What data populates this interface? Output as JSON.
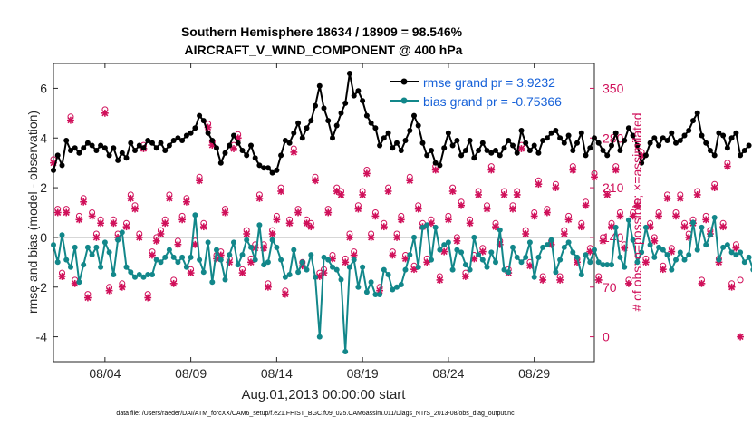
{
  "chart_data": {
    "type": "line",
    "title": "Southern Hemisphere 18634 / 18909 = 98.546%",
    "subtitle": "AIRCRAFT_V_WIND_COMPONENT @ 400 hPa",
    "xlabel": "Aug.01,2013 00:00:00 start",
    "ylabel": "rmse and bias (model - observation)",
    "ylabel_right": "# of obs: o=possible; ×=assimilated",
    "footnote": "data file: /Users/raeder/DAI/ATM_forcXX/CAM6_setup/f.e21.FHIST_BGC.f09_025.CAM6assim.011/Diags_NTrS_2013-08/obs_diag_output.nc",
    "x_range": [
      1,
      32.5
    ],
    "ylim": [
      -5,
      7
    ],
    "ylim_right": [
      -35,
      385
    ],
    "x_ticks": [
      {
        "value": 4,
        "label": "08/04"
      },
      {
        "value": 9,
        "label": "08/09"
      },
      {
        "value": 14,
        "label": "08/14"
      },
      {
        "value": 19,
        "label": "08/19"
      },
      {
        "value": 24,
        "label": "08/24"
      },
      {
        "value": 29,
        "label": "08/29"
      }
    ],
    "y_ticks": [
      -4,
      -2,
      0,
      2,
      4,
      6
    ],
    "y_ticks_right": [
      0,
      70,
      140,
      210,
      280,
      350
    ],
    "legend": {
      "location": "top-right"
    },
    "series": [
      {
        "name": "rmse grand pr = 3.9232",
        "axis": "left",
        "color": "#000000",
        "x_start": 1.0,
        "x_step": 0.25,
        "values": [
          2.7,
          3.3,
          2.9,
          3.9,
          3.5,
          3.6,
          3.4,
          3.6,
          3.8,
          3.7,
          3.5,
          3.7,
          3.6,
          3.3,
          3.6,
          3.1,
          3.4,
          3.2,
          3.8,
          3.5,
          3.7,
          3.6,
          3.9,
          3.8,
          3.6,
          3.8,
          3.5,
          3.7,
          3.9,
          4.0,
          3.9,
          4.1,
          4.2,
          4.4,
          4.9,
          4.7,
          4.2,
          3.9,
          3.6,
          3.0,
          3.4,
          3.7,
          4.1,
          3.8,
          3.5,
          3.3,
          3.7,
          3.2,
          2.9,
          2.8,
          2.8,
          2.6,
          2.7,
          3.3,
          3.9,
          3.8,
          4.2,
          4.6,
          4.0,
          4.4,
          4.7,
          5.3,
          6.1,
          5.2,
          4.7,
          4.0,
          4.5,
          5.0,
          5.4,
          6.6,
          5.7,
          5.9,
          5.5,
          4.9,
          4.6,
          4.4,
          3.7,
          4.0,
          4.2,
          3.6,
          3.8,
          3.5,
          3.9,
          4.3,
          4.9,
          4.5,
          3.8,
          3.3,
          3.5,
          3.0,
          2.9,
          3.6,
          4.2,
          3.7,
          3.9,
          3.3,
          3.5,
          3.9,
          3.2,
          3.5,
          3.8,
          3.5,
          3.4,
          3.5,
          3.3,
          3.6,
          3.9,
          3.7,
          3.4,
          4.3,
          3.8,
          3.5,
          3.7,
          3.4,
          3.9,
          4.0,
          4.2,
          4.3,
          4.0,
          3.8,
          4.1,
          3.5,
          3.8,
          4.2,
          3.3,
          3.6,
          4.0,
          3.8,
          3.5,
          3.3,
          3.7,
          4.2,
          3.5,
          3.9,
          4.4,
          4.1,
          3.7,
          3.0,
          3.3,
          3.8,
          4.0,
          3.7,
          4.0,
          3.9,
          4.2,
          3.8,
          3.9,
          4.1,
          4.3,
          4.7,
          5.0,
          4.1,
          3.8,
          3.5,
          3.3,
          4.2,
          4.1,
          3.6,
          4.0,
          4.2,
          3.3,
          3.5,
          3.7
        ]
      },
      {
        "name": "bias grand pr = -0.75366",
        "axis": "left",
        "color": "#12878a",
        "x_start": 1.0,
        "x_step": 0.25,
        "values": [
          -0.3,
          -1.0,
          0.1,
          -0.9,
          -1.2,
          -0.4,
          -1.8,
          -1.1,
          -0.4,
          -0.7,
          -0.4,
          -1.2,
          -0.2,
          -0.6,
          -1.5,
          -0.1,
          0.2,
          -1.2,
          -1.4,
          -1.6,
          -1.5,
          -1.6,
          -1.5,
          -1.5,
          -0.9,
          -1.0,
          -0.8,
          -0.5,
          -0.8,
          -1.0,
          -0.8,
          -1.2,
          -0.8,
          0.9,
          -0.9,
          -1.4,
          -0.2,
          -1.8,
          -0.5,
          -0.9,
          -1.7,
          -0.7,
          -0.2,
          -1.1,
          -0.7,
          -0.1,
          -0.4,
          -0.9,
          0.5,
          -1.1,
          -1.0,
          -0.1,
          -0.4,
          -0.9,
          -1.6,
          -1.5,
          -0.5,
          -1.4,
          -1.0,
          -1.3,
          -0.7,
          -1.6,
          -4.0,
          -0.8,
          -0.9,
          -1.2,
          -1.3,
          -1.7,
          -4.6,
          -1.2,
          -0.9,
          -2.0,
          -1.2,
          -2.2,
          -1.8,
          -2.3,
          -2.3,
          -1.3,
          -1.5,
          -2.1,
          -2.0,
          -1.9,
          -1.3,
          -0.7,
          0.0,
          -1.2,
          0.4,
          0.5,
          -0.9,
          0.4,
          -0.5,
          -0.3,
          -0.2,
          -1.3,
          -0.5,
          -0.6,
          -1.1,
          -1.3,
          0.0,
          -0.7,
          -0.9,
          -1.2,
          -0.6,
          -1.0,
          0.3,
          -1.3,
          -1.4,
          -0.4,
          -0.8,
          -1.0,
          -0.8,
          -0.2,
          -1.6,
          -0.8,
          -0.4,
          -0.3,
          -0.1,
          -1.4,
          -0.9,
          -0.4,
          -0.2,
          -0.6,
          -0.8,
          -1.5,
          -0.7,
          -1.0,
          -0.5,
          -1.0,
          -1.1,
          -1.1,
          -1.1,
          0.4,
          -0.8,
          -1.2,
          0.7,
          -0.1,
          -1.0,
          -0.6,
          0.4,
          -0.3,
          -0.8,
          -0.4,
          -0.5,
          -0.7,
          -1.3,
          -0.9,
          -0.6,
          -0.9,
          -0.7,
          0.6,
          -0.5,
          0.4,
          -0.3,
          0.1,
          0.8,
          -0.9,
          -0.4,
          -0.3,
          -0.6,
          -0.7,
          -0.6,
          -1.0,
          -0.8,
          -1.3
        ]
      },
      {
        "name": "obs possible",
        "axis": "right",
        "color": "#d0105a",
        "marker": "o",
        "x_start": 1.0,
        "x_step": 0.25,
        "values": [
          250,
          180,
          90,
          180,
          310,
          80,
          170,
          195,
          60,
          175,
          145,
          165,
          320,
          70,
          165,
          145,
          75,
          160,
          200,
          185,
          145,
          270,
          60,
          120,
          140,
          150,
          165,
          200,
          80,
          135,
          170,
          195,
          95,
          135,
          225,
          160,
          300,
          275,
          115,
          120,
          180,
          110,
          270,
          285,
          95,
          150,
          110,
          130,
          200,
          130,
          75,
          150,
          170,
          210,
          65,
          165,
          265,
          180,
          105,
          165,
          160,
          225,
          90,
          95,
          180,
          115,
          210,
          205,
          110,
          145,
          120,
          185,
          205,
          235,
          145,
          175,
          70,
          160,
          210,
          120,
          145,
          170,
          115,
          225,
          100,
          185,
          160,
          110,
          165,
          240,
          85,
          125,
          170,
          210,
          140,
          190,
          90,
          165,
          115,
          205,
          125,
          185,
          240,
          160,
          135,
          205,
          95,
          185,
          205,
          270,
          150,
          105,
          175,
          220,
          85,
          180,
          135,
          215,
          85,
          150,
          170,
          240,
          110,
          160,
          190,
          125,
          230,
          85,
          140,
          205,
          160,
          240,
          175,
          130,
          80,
          175,
          190,
          260,
          110,
          160,
          140,
          175,
          100,
          200,
          125,
          175,
          200,
          160,
          145,
          165,
          205,
          80,
          170,
          150,
          215,
          110,
          160,
          245,
          75,
          130,
          80
        ]
      },
      {
        "name": "obs assimilated",
        "axis": "right",
        "color": "#d0105a",
        "marker": "x",
        "x_start": 1.0,
        "x_step": 0.25,
        "values": [
          245,
          175,
          85,
          175,
          305,
          75,
          165,
          190,
          55,
          170,
          140,
          160,
          315,
          65,
          160,
          140,
          70,
          155,
          195,
          180,
          140,
          265,
          55,
          115,
          135,
          145,
          160,
          195,
          75,
          130,
          165,
          190,
          90,
          130,
          220,
          155,
          295,
          270,
          110,
          115,
          175,
          105,
          265,
          280,
          90,
          145,
          105,
          125,
          195,
          125,
          70,
          145,
          165,
          205,
          60,
          160,
          260,
          175,
          100,
          160,
          155,
          220,
          85,
          90,
          175,
          110,
          205,
          200,
          105,
          140,
          115,
          180,
          200,
          230,
          140,
          170,
          65,
          155,
          205,
          115,
          140,
          165,
          110,
          220,
          95,
          180,
          155,
          105,
          160,
          235,
          80,
          120,
          165,
          205,
          135,
          185,
          85,
          160,
          110,
          200,
          120,
          180,
          235,
          155,
          130,
          200,
          90,
          180,
          200,
          265,
          145,
          100,
          170,
          215,
          80,
          175,
          130,
          210,
          80,
          145,
          165,
          235,
          105,
          155,
          185,
          120,
          225,
          80,
          135,
          200,
          155,
          235,
          170,
          125,
          75,
          170,
          185,
          255,
          105,
          155,
          135,
          170,
          95,
          195,
          120,
          170,
          195,
          155,
          140,
          160,
          200,
          75,
          165,
          145,
          210,
          105,
          155,
          240,
          70,
          125,
          0
        ]
      }
    ]
  }
}
